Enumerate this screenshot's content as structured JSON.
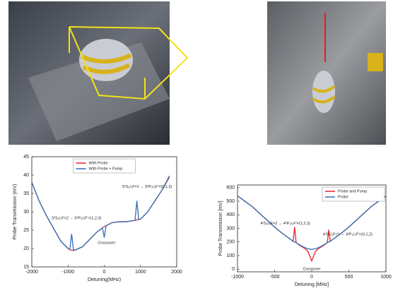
{
  "chart_data": [
    {
      "type": "line",
      "x_label": "Detuning(MHz)",
      "y_label": "Probe Transmission (mV)",
      "annotations": [
        "5²S₁/₂F=2 → 5²P₃/₂F'=(1,2,3)",
        "Crossover",
        "5²S₁/₂F=1 → 5²P₃/₂F'=(0,1,2)"
      ],
      "x": [
        -2000,
        -1800,
        -1600,
        -1400,
        -1200,
        -1000,
        -950,
        -900,
        -850,
        -800,
        -600,
        -400,
        -200,
        -50,
        0,
        50,
        200,
        400,
        600,
        800,
        850,
        900,
        950,
        1000,
        1200,
        1400,
        1600,
        1800
      ],
      "series": [
        {
          "name": "With Probe",
          "color": "#e8202a",
          "values": [
            38,
            33,
            29,
            25.5,
            22,
            20,
            19.7,
            19.5,
            19.5,
            19.6,
            20.5,
            22.5,
            24.5,
            25.6,
            26,
            26.2,
            27,
            27.3,
            27.3,
            27.6,
            27.7,
            27.8,
            27.9,
            28,
            30,
            33,
            36,
            39.5
          ]
        },
        {
          "name": "With Probe + Pump",
          "color": "#2f6db5",
          "values": [
            38,
            33,
            29,
            25.5,
            22,
            20,
            19.8,
            24,
            19.6,
            19.6,
            20.5,
            22.5,
            24.5,
            25.6,
            23,
            26.2,
            27,
            27.3,
            27.3,
            27.6,
            27.7,
            33,
            27.9,
            28,
            30,
            33,
            36,
            39.8
          ]
        }
      ],
      "xlim": [
        -2000,
        2000
      ],
      "xticks": [
        -2000,
        -1000,
        0,
        1000,
        2000
      ],
      "ylim": [
        15,
        45
      ],
      "yticks": [
        15,
        20,
        25,
        30,
        35,
        40,
        45
      ],
      "legend": "top",
      "grid": false
    },
    {
      "type": "line",
      "x_label": "Detuning [MHz]",
      "y_label": "Probe Transmission [mV]",
      "annotations": [
        "4²S₁/₂F=2 → 4²P₃/₂F'=(1,2,3)",
        "Crossover",
        "4²S₁/₂F=1 → 4²P₃/₂F'=(0,1,2)"
      ],
      "x": [
        -1000,
        -900,
        -800,
        -700,
        -600,
        -500,
        -400,
        -300,
        -250,
        -230,
        -210,
        -150,
        -100,
        -50,
        0,
        50,
        100,
        150,
        210,
        230,
        250,
        300,
        400,
        500,
        600,
        700,
        800,
        900,
        1000
      ],
      "series": [
        {
          "name": "Probe and Pump",
          "color": "#e8202a",
          "values": [
            540,
            500,
            460,
            410,
            360,
            310,
            265,
            225,
            205,
            310,
            195,
            170,
            155,
            130,
            60,
            130,
            155,
            170,
            195,
            290,
            205,
            225,
            265,
            310,
            360,
            410,
            460,
            500,
            540
          ]
        },
        {
          "name": "Probe",
          "color": "#2f6db5",
          "values": [
            540,
            500,
            460,
            410,
            360,
            310,
            265,
            225,
            205,
            200,
            195,
            175,
            160,
            150,
            145,
            150,
            160,
            175,
            195,
            200,
            205,
            225,
            265,
            310,
            360,
            410,
            460,
            500,
            535
          ]
        }
      ],
      "xlim": [
        -1000,
        1000
      ],
      "xticks": [
        -1000,
        -500,
        0,
        500,
        1000
      ],
      "ylim": [
        -20,
        620
      ],
      "yticks": [
        0,
        100,
        200,
        300,
        400,
        500,
        600
      ],
      "legend": "top-right",
      "grid": false
    }
  ]
}
